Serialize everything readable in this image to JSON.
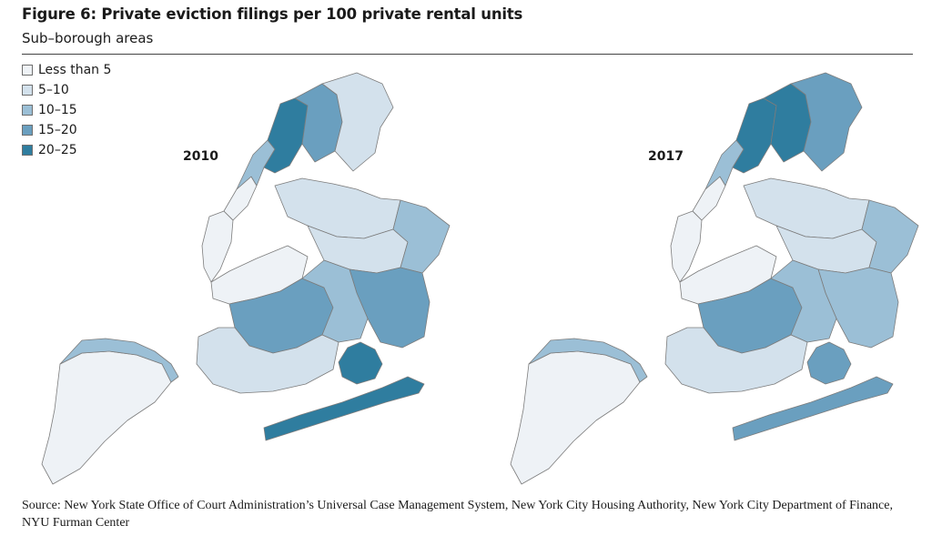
{
  "title": "Figure 6: Private eviction filings per 100 private rental units",
  "subtitle": "Sub–borough areas",
  "legend": [
    {
      "label": "Less than 5",
      "color": "#eef2f6"
    },
    {
      "label": "5–10",
      "color": "#d3e1ec"
    },
    {
      "label": "10–15",
      "color": "#9bbfd6"
    },
    {
      "label": "15–20",
      "color": "#6a9fbf"
    },
    {
      "label": "20–25",
      "color": "#2f7d9f"
    }
  ],
  "maps": [
    {
      "label": "2010",
      "classes": {
        "staten_north": 2,
        "staten_rest": 0,
        "bronx_west": 4,
        "bronx_mid": 3,
        "bronx_east": 1,
        "manhattan_north": 2,
        "manhattan_mid": 0,
        "manhattan_south": 0,
        "brooklyn_central": 3,
        "brooklyn_east": 2,
        "brooklyn_south": 1,
        "brooklyn_north": 0,
        "queens_se": 3,
        "queens_east": 2,
        "queens_mid": 1,
        "queens_north": 1,
        "jamaica_bay": 4,
        "rockaway": 4
      }
    },
    {
      "label": "2017",
      "classes": {
        "staten_north": 2,
        "staten_rest": 0,
        "bronx_west": 4,
        "bronx_mid": 4,
        "bronx_east": 3,
        "manhattan_north": 2,
        "manhattan_mid": 0,
        "manhattan_south": 0,
        "brooklyn_central": 3,
        "brooklyn_east": 2,
        "brooklyn_south": 1,
        "brooklyn_north": 0,
        "queens_se": 2,
        "queens_east": 2,
        "queens_mid": 1,
        "queens_north": 1,
        "jamaica_bay": 3,
        "rockaway": 3
      }
    }
  ],
  "source": "Source: New York State Office of Court Administration’s Universal Case Management System, New York City Housing Authority, New York City Department of Finance, NYU Furman Center"
}
